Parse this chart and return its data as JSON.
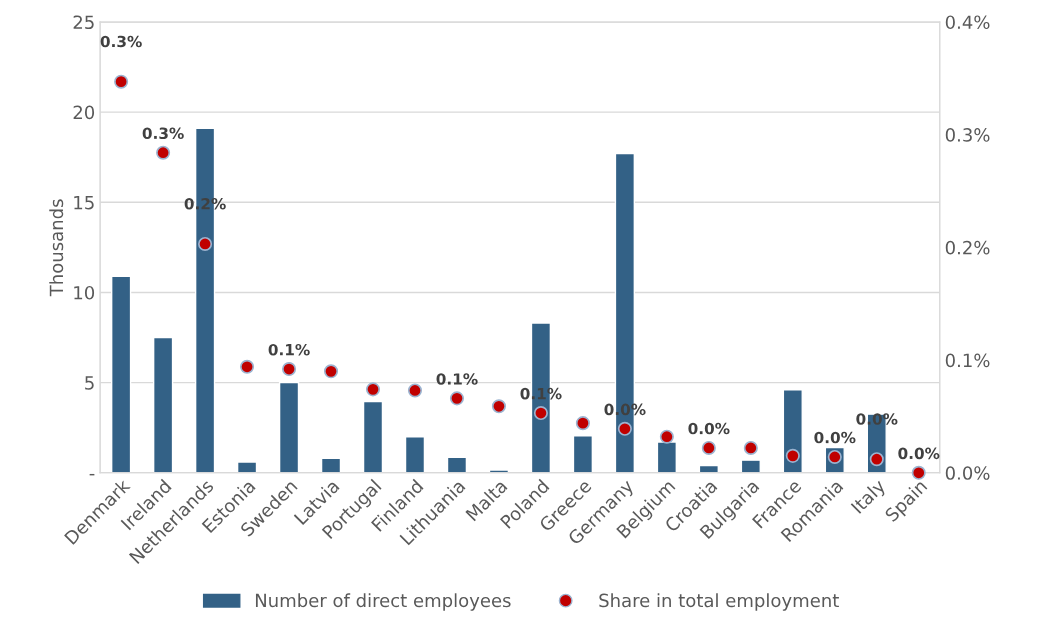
{
  "chart_data": {
    "type": "bar",
    "categories": [
      "Denmark",
      "Ireland",
      "Netherlands",
      "Estonia",
      "Sweden",
      "Latvia",
      "Portugal",
      "Finland",
      "Lithuania",
      "Malta",
      "Poland",
      "Greece",
      "Germany",
      "Belgium",
      "Croatia",
      "Bulgaria",
      "France",
      "Romania",
      "Italy",
      "Spain"
    ],
    "ylabel": "Thousands",
    "ylim": [
      0,
      25
    ],
    "yticks": [
      {
        "value": 0,
        "label": "-"
      },
      5,
      10,
      15,
      20,
      25
    ],
    "y2lim": [
      0,
      0.4
    ],
    "y2ticks": [
      {
        "value": 0,
        "label": "0.0%"
      },
      {
        "value": 0.1,
        "label": "0.1%"
      },
      {
        "value": 0.2,
        "label": "0.2%"
      },
      {
        "value": 0.3,
        "label": "0.3%"
      },
      {
        "value": 0.4,
        "label": "0.4%"
      }
    ],
    "grid": "y",
    "legend": "bottom",
    "series": [
      {
        "name": "Number of direct employees",
        "color": "#336186",
        "values": [
          10.9,
          7.5,
          19.1,
          0.6,
          5.0,
          0.8,
          3.95,
          2.0,
          0.85,
          0.15,
          8.3,
          2.05,
          17.7,
          1.7,
          0.4,
          0.7,
          4.6,
          1.4,
          3.25,
          null
        ]
      },
      {
        "name": "Share in total employment",
        "type": "scatter",
        "axis": "y2",
        "color": "#c00000",
        "marker": "circle",
        "values": [
          0.347,
          0.284,
          0.203,
          0.094,
          0.092,
          0.09,
          0.074,
          0.073,
          0.066,
          0.059,
          0.053,
          0.044,
          0.039,
          0.032,
          0.022,
          0.022,
          0.015,
          0.014,
          0.012,
          0.0
        ],
        "value_labels": [
          "0.3%",
          "0.3%",
          "0.2%",
          null,
          "0.1%",
          null,
          null,
          null,
          "0.1%",
          null,
          "0.1%",
          null,
          "0.0%",
          null,
          "0.0%",
          null,
          null,
          "0.0%",
          "0.0%",
          "0.0%"
        ]
      }
    ]
  }
}
